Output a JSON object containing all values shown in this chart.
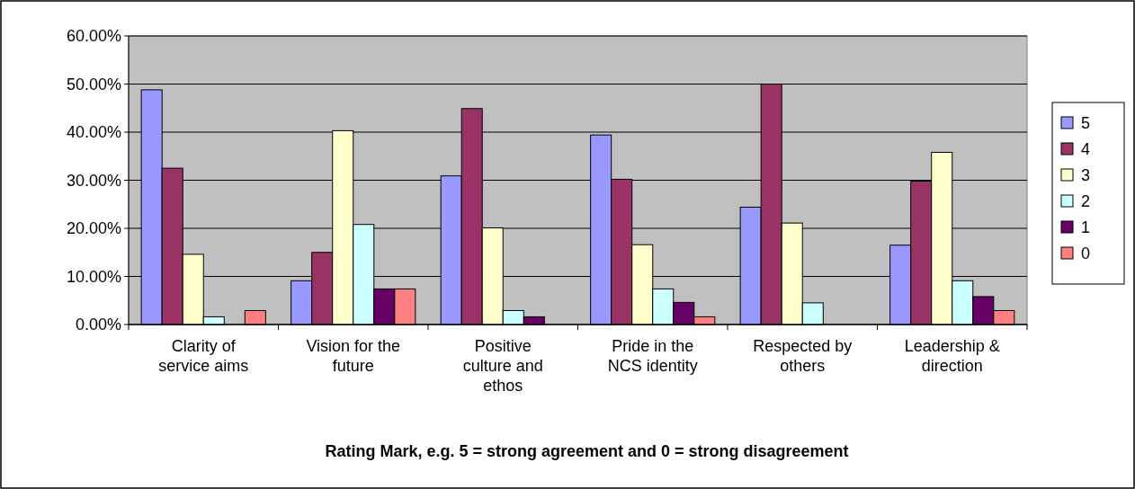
{
  "chart_data": {
    "type": "bar",
    "xlabel": "Rating Mark, e.g. 5 = strong agreement and 0 = strong disagreement",
    "categories": [
      "Clarity of service aims",
      "Vision for the future",
      "Positive culture and ethos",
      "Pride in the NCS identity",
      "Respected by others",
      "Leadership & direction"
    ],
    "series": [
      {
        "name": "5",
        "color": "#9999ff",
        "values": [
          48.8,
          9.1,
          30.9,
          39.4,
          24.4,
          16.5
        ]
      },
      {
        "name": "4",
        "color": "#993366",
        "values": [
          32.5,
          15.0,
          44.9,
          30.2,
          50.0,
          29.8
        ]
      },
      {
        "name": "3",
        "color": "#ffffcc",
        "values": [
          14.6,
          40.3,
          20.1,
          16.6,
          21.1,
          35.8
        ]
      },
      {
        "name": "2",
        "color": "#ccffff",
        "values": [
          1.6,
          20.8,
          2.9,
          7.4,
          4.5,
          9.1
        ]
      },
      {
        "name": "1",
        "color": "#660066",
        "values": [
          0,
          7.4,
          1.6,
          4.6,
          0,
          5.8
        ]
      },
      {
        "name": "0",
        "color": "#ff8080",
        "values": [
          2.9,
          7.4,
          0,
          1.6,
          0,
          2.9
        ]
      }
    ],
    "ylim": [
      0,
      60
    ],
    "yticks": [
      {
        "value": 0,
        "label": "0.00%"
      },
      {
        "value": 10,
        "label": "10.00%"
      },
      {
        "value": 20,
        "label": "20.00%"
      },
      {
        "value": 30,
        "label": "30.00%"
      },
      {
        "value": 40,
        "label": "40.00%"
      },
      {
        "value": 50,
        "label": "50.00%"
      },
      {
        "value": 60,
        "label": "60.00%"
      }
    ],
    "grid": "y",
    "legend": "right"
  }
}
